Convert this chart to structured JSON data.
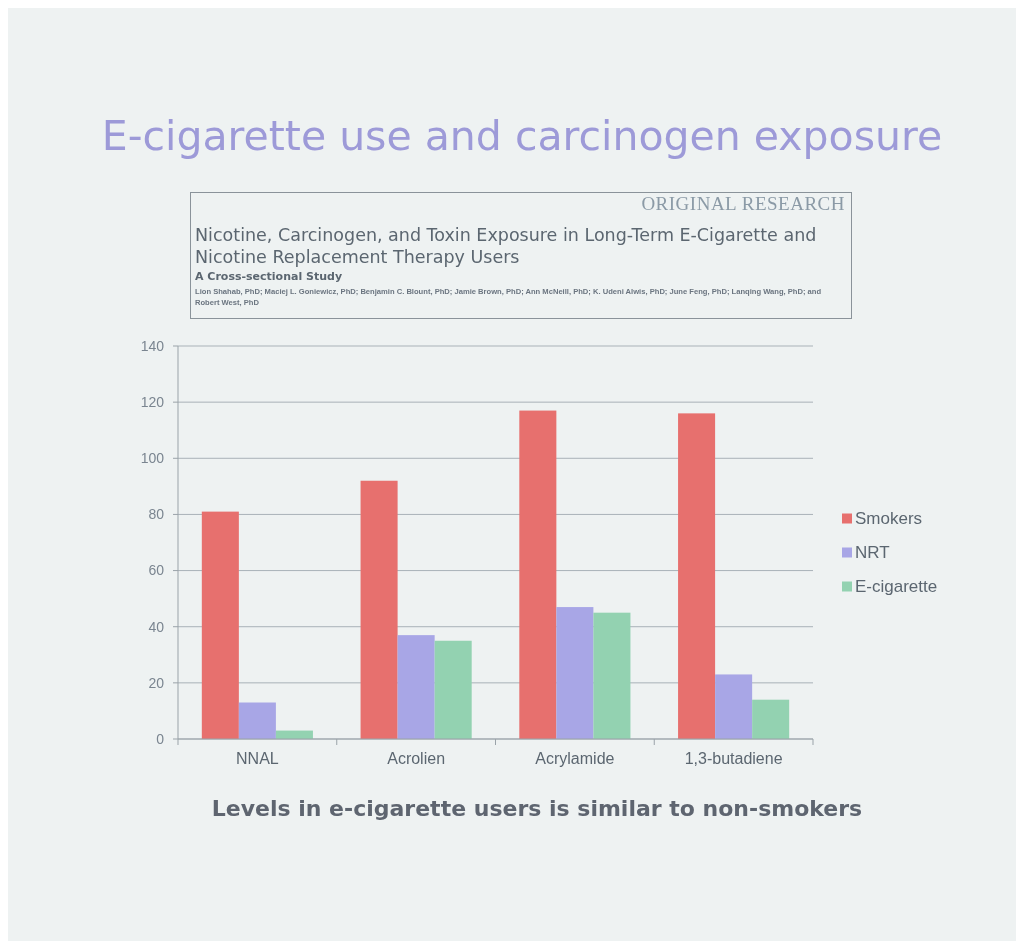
{
  "chart_data": {
    "type": "bar",
    "title": "E-cigarette use and carcinogen exposure",
    "categories": [
      "NNAL",
      "Acrolien",
      "Acrylamide",
      "1,3-butadiene"
    ],
    "series": [
      {
        "name": "Smokers",
        "color": "#e7706e",
        "values": [
          81,
          92,
          117,
          116
        ]
      },
      {
        "name": "NRT",
        "color": "#a8a6e6",
        "values": [
          13,
          37,
          47,
          23
        ]
      },
      {
        "name": "E-cigarette",
        "color": "#93d2b1",
        "values": [
          3,
          35,
          45,
          14
        ]
      }
    ],
    "ylim": [
      0,
      140
    ],
    "yticks": [
      0,
      20,
      40,
      60,
      80,
      100,
      120,
      140
    ],
    "grid": "y",
    "legend": "right",
    "annotations": [
      "ORIGINAL RESEARCH",
      "Nicotine, Carcinogen, and Toxin Exposure in Long-Term E-Cigarette and Nicotine Replacement Therapy Users",
      "A Cross-sectional Study",
      "Lion Shahab, PhD; Maciej L. Goniewicz, PhD; Benjamin C. Blount, PhD; Jamie Brown, PhD; Ann McNeill, PhD; K. Udeni Alwis, PhD; June Feng, PhD; Lanqing Wang, PhD; and Robert West, PhD",
      "Levels in e-cigarette users is similar to non-smokers"
    ]
  }
}
